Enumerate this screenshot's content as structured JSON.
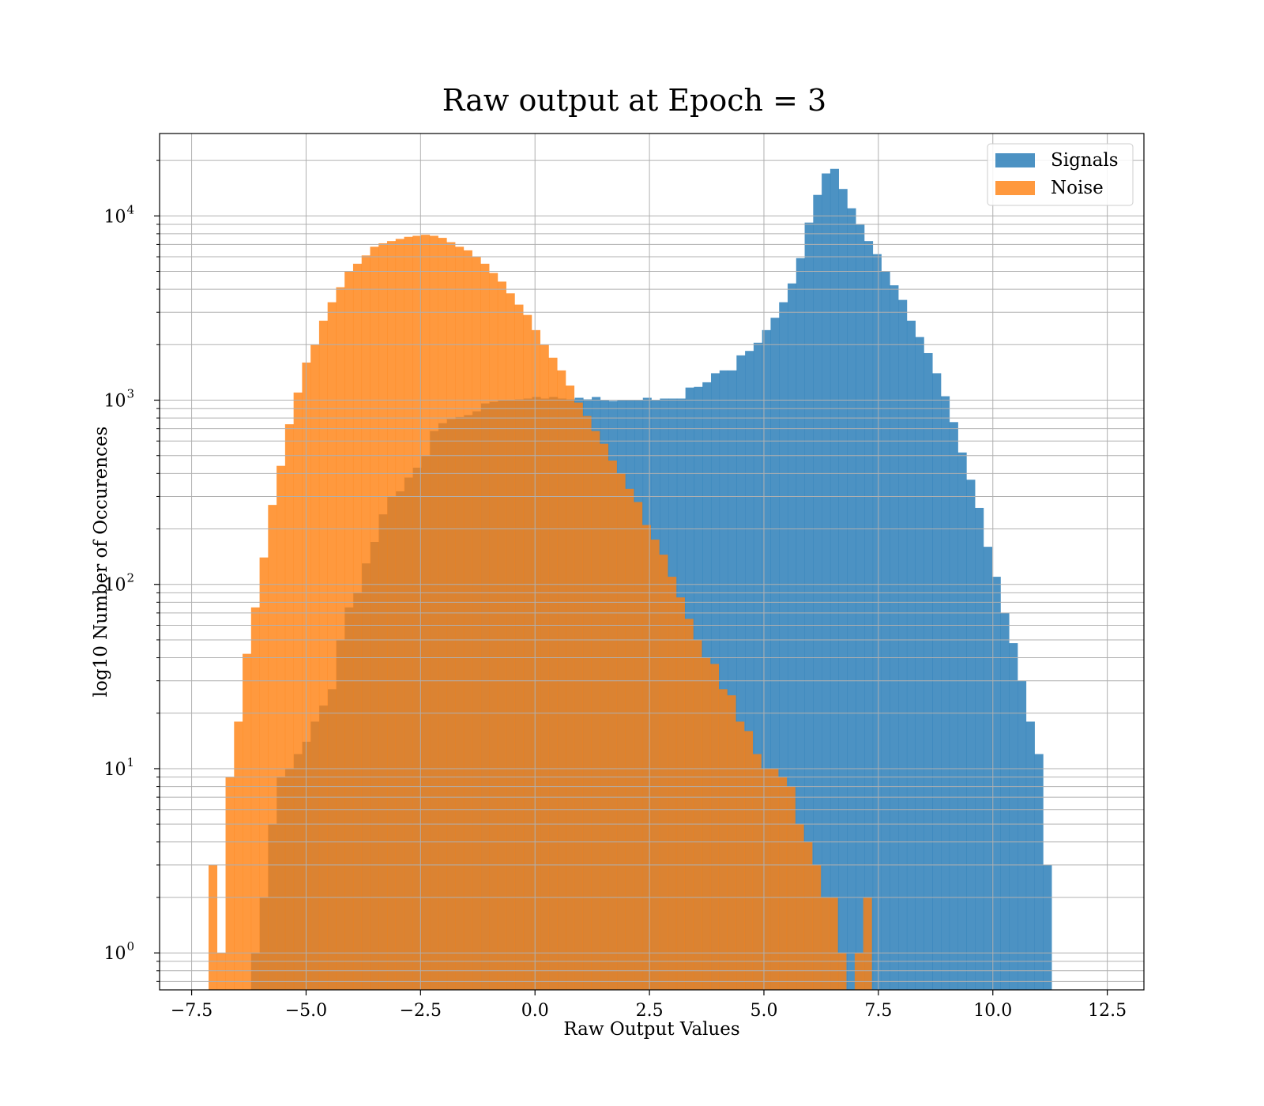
{
  "chart_data": {
    "type": "bar",
    "title": "Raw output at Epoch = 3",
    "xlabel": "Raw Output Values",
    "ylabel": "log10 Number of Occurences",
    "xlim": [
      -8.2,
      13.3
    ],
    "ylim": [
      0.63,
      28000
    ],
    "yscale": "log",
    "grid": true,
    "legend_position": "top-right",
    "x_ticks": [
      -7.5,
      -5.0,
      -2.5,
      0.0,
      2.5,
      5.0,
      7.5,
      10.0,
      12.5
    ],
    "x_tick_labels": [
      "−7.5",
      "−5.0",
      "−2.5",
      "0.0",
      "2.5",
      "5.0",
      "7.5",
      "10.0",
      "12.5"
    ],
    "y_ticks": [
      {
        "value": 1,
        "base": "10",
        "exp": "0"
      },
      {
        "value": 10,
        "base": "10",
        "exp": "1"
      },
      {
        "value": 100,
        "base": "10",
        "exp": "2"
      },
      {
        "value": 1000,
        "base": "10",
        "exp": "3"
      },
      {
        "value": 10000,
        "base": "10",
        "exp": "4"
      }
    ],
    "series": [
      {
        "name": "Signals",
        "color": "#1f77b4",
        "opacity": 0.8,
        "bin_start": -6.2,
        "bin_width": 0.186,
        "counts": [
          1,
          2,
          5,
          9,
          10,
          12,
          14,
          18,
          22,
          27,
          50,
          75,
          90,
          130,
          170,
          240,
          300,
          320,
          380,
          430,
          500,
          680,
          750,
          790,
          810,
          830,
          870,
          960,
          980,
          1000,
          1000,
          1010,
          1020,
          1040,
          1020,
          1040,
          1020,
          1010,
          1030,
          1010,
          1040,
          1000,
          990,
          1000,
          1000,
          1000,
          1030,
          1000,
          1020,
          1020,
          1020,
          1170,
          1180,
          1250,
          1400,
          1450,
          1450,
          1750,
          1850,
          2050,
          2400,
          2800,
          3400,
          4300,
          5900,
          9200,
          13000,
          17000,
          18000,
          14000,
          11000,
          9000,
          7300,
          6200,
          5000,
          4200,
          3500,
          2700,
          2200,
          1800,
          1400,
          1050,
          760,
          520,
          370,
          260,
          160,
          110,
          70,
          48,
          30,
          18,
          12,
          3
        ]
      },
      {
        "name": "Noise",
        "color": "#ff7f0e",
        "opacity": 0.8,
        "bin_start": -7.13,
        "bin_width": 0.1857,
        "counts": [
          3,
          1,
          9,
          18,
          42,
          75,
          140,
          270,
          440,
          740,
          1100,
          1600,
          2000,
          2700,
          3400,
          4100,
          5000,
          5500,
          6100,
          6800,
          7100,
          7300,
          7500,
          7700,
          7800,
          7900,
          7800,
          7600,
          7200,
          6800,
          6500,
          6000,
          5500,
          4900,
          4400,
          3800,
          3300,
          2900,
          2400,
          2000,
          1700,
          1450,
          1200,
          970,
          820,
          680,
          580,
          470,
          400,
          330,
          280,
          210,
          175,
          145,
          110,
          85,
          65,
          50,
          40,
          37,
          27,
          25,
          18,
          16,
          12,
          10,
          10,
          9,
          8,
          5,
          4,
          3,
          2,
          2,
          1,
          0,
          1,
          2
        ]
      }
    ]
  }
}
